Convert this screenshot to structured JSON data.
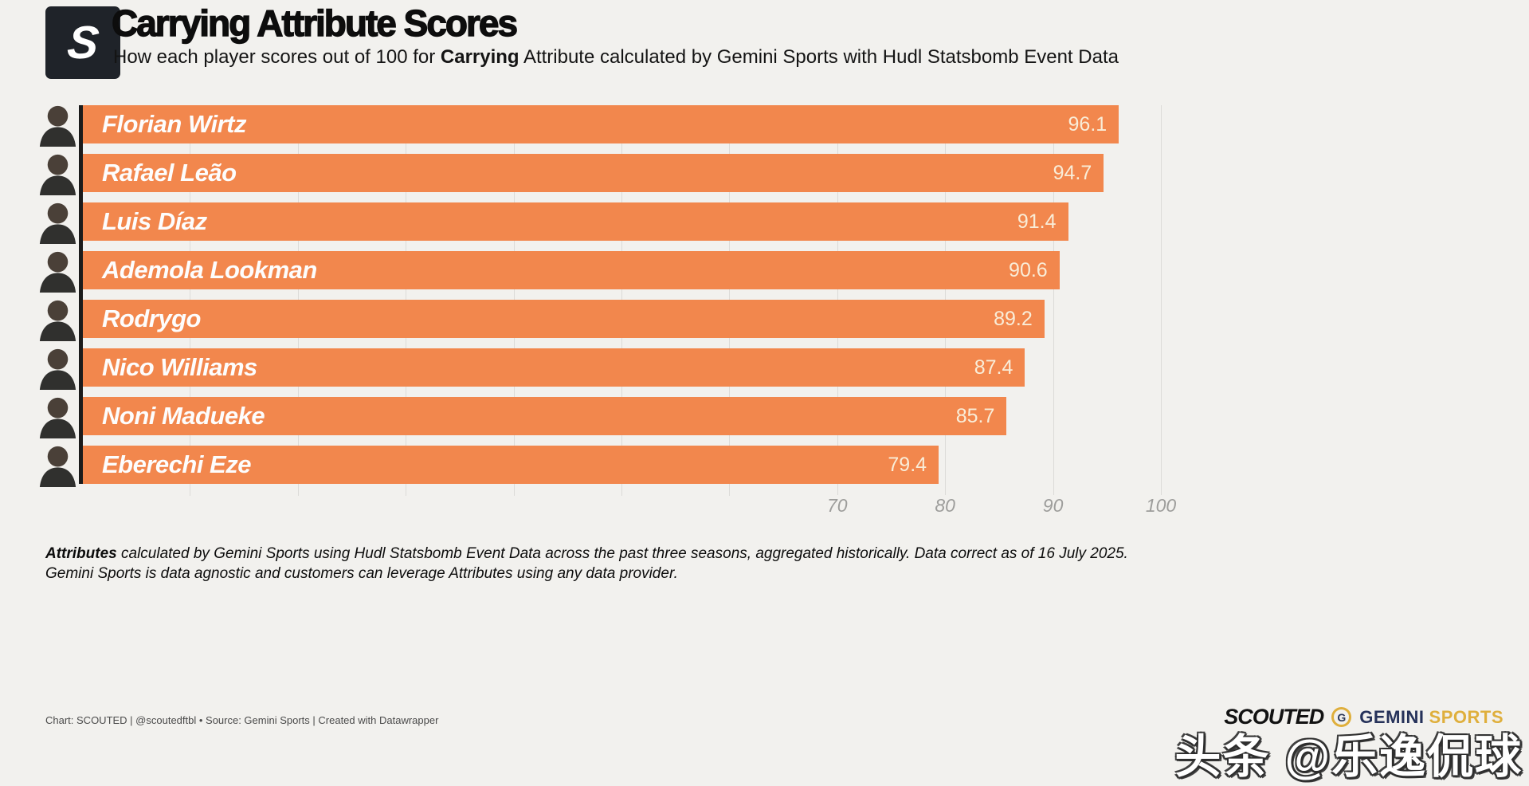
{
  "header": {
    "logo_letter": "S",
    "title": "Carrying Attribute Scores",
    "subtitle_prefix": "How each player scores out of 100 for ",
    "subtitle_bold": "Carrying",
    "subtitle_suffix": " Attribute calculated by Gemini Sports with Hudl Statsbomb Event Data"
  },
  "chart_data": {
    "type": "bar",
    "orientation": "horizontal",
    "title": "Carrying Attribute Scores",
    "categories": [
      "Florian Wirtz",
      "Rafael Leão",
      "Luis Díaz",
      "Ademola Lookman",
      "Rodrygo",
      "Nico Williams",
      "Noni Madueke",
      "Eberechi Eze"
    ],
    "values": [
      96.1,
      94.7,
      91.4,
      90.6,
      89.2,
      87.4,
      85.7,
      79.4
    ],
    "xlabel": "",
    "ylabel": "",
    "xlim": [
      0,
      100
    ],
    "x_ticks": [
      70,
      80,
      90,
      100
    ],
    "gridline_interval": 10,
    "grid": true,
    "legend": false,
    "bar_color": "#F2874D",
    "value_label_color": "#F9EDD8"
  },
  "footnote": {
    "line1_bold": "Attributes",
    "line1_rest": " calculated by Gemini Sports using Hudl Statsbomb Event Data across the past three seasons, aggregated historically. Data correct as of 16 July 2025.",
    "line2": "Gemini Sports is data agnostic and customers can leverage Attributes using any data provider."
  },
  "attribution": "Chart: SCOUTED | @scoutedftbl • Source: Gemini Sports | Created with Datawrapper",
  "logos": {
    "scouted": "SCOUTED",
    "gemini_g": "G",
    "gemini_word": "GEMINI",
    "sports_word": "SPORTS"
  },
  "watermark": "头条 @乐逸侃球"
}
